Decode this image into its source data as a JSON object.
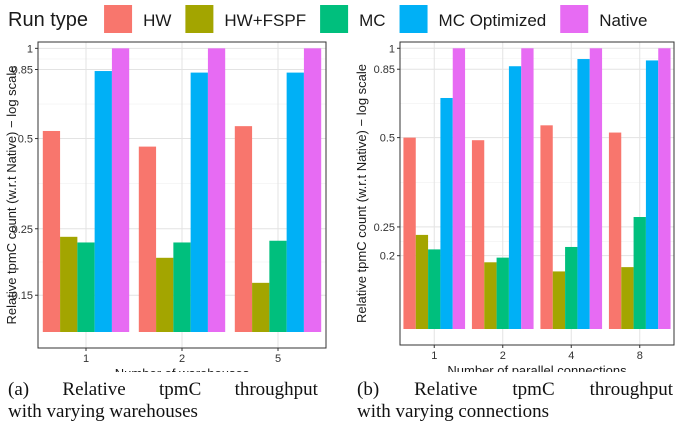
{
  "legend": {
    "title": "Run type",
    "items": [
      {
        "name": "HW",
        "color": "#F8766D"
      },
      {
        "name": "HW+FSPF",
        "color": "#A3A500"
      },
      {
        "name": "MC",
        "color": "#00BF7D"
      },
      {
        "name": "MC Optimized",
        "color": "#00B0F6"
      },
      {
        "name": "Native",
        "color": "#E76BF3"
      }
    ]
  },
  "chart_data": [
    {
      "type": "bar",
      "ylabel": "Relative tpmC count (w.r.t Native) − log scale",
      "xlabel": "Number of warehouses",
      "y_scale": "log",
      "ylim": [
        0.1,
        1.05
      ],
      "yticks": [
        0.15,
        0.25,
        0.5,
        0.85,
        1
      ],
      "ytick_labels": [
        "0.15",
        "0.25",
        "0.5",
        "0.85",
        "1"
      ],
      "grid": true,
      "categories": [
        "1",
        "2",
        "5"
      ],
      "series": [
        {
          "name": "HW",
          "values": [
            0.53,
            0.47,
            0.55
          ]
        },
        {
          "name": "HW+FSPF",
          "values": [
            0.235,
            0.2,
            0.165
          ]
        },
        {
          "name": "MC",
          "values": [
            0.225,
            0.225,
            0.228
          ]
        },
        {
          "name": "MC Optimized",
          "values": [
            0.84,
            0.83,
            0.83
          ]
        },
        {
          "name": "Native",
          "values": [
            1,
            1,
            1
          ]
        }
      ]
    },
    {
      "type": "bar",
      "ylabel": "Relative tpmC count (w.r.t Native) − log scale",
      "xlabel": "Number of parallel connections",
      "y_scale": "log",
      "ylim": [
        0.1,
        1.05
      ],
      "yticks": [
        0.2,
        0.25,
        0.5,
        0.85,
        1
      ],
      "ytick_labels": [
        "0.2",
        "0.25",
        "0.5",
        "0.85",
        "1"
      ],
      "grid": true,
      "categories": [
        "1",
        "2",
        "4",
        "8"
      ],
      "series": [
        {
          "name": "HW",
          "values": [
            0.5,
            0.49,
            0.55,
            0.52
          ]
        },
        {
          "name": "HW+FSPF",
          "values": [
            0.235,
            0.19,
            0.177,
            0.183
          ]
        },
        {
          "name": "MC",
          "values": [
            0.21,
            0.197,
            0.214,
            0.27
          ]
        },
        {
          "name": "MC Optimized",
          "values": [
            0.68,
            0.87,
            0.92,
            0.91
          ]
        },
        {
          "name": "Native",
          "values": [
            1,
            1,
            1,
            1
          ]
        }
      ]
    }
  ],
  "captions": {
    "a": {
      "l1a": "(a)",
      "l1b": "Relative",
      "l1c": "tpmC",
      "l1d": "throughput",
      "l2": "with varying warehouses"
    },
    "b": {
      "l1a": "(b)",
      "l1b": "Relative",
      "l1c": "tpmC",
      "l1d": "throughput",
      "l2": "with varying connections"
    }
  }
}
